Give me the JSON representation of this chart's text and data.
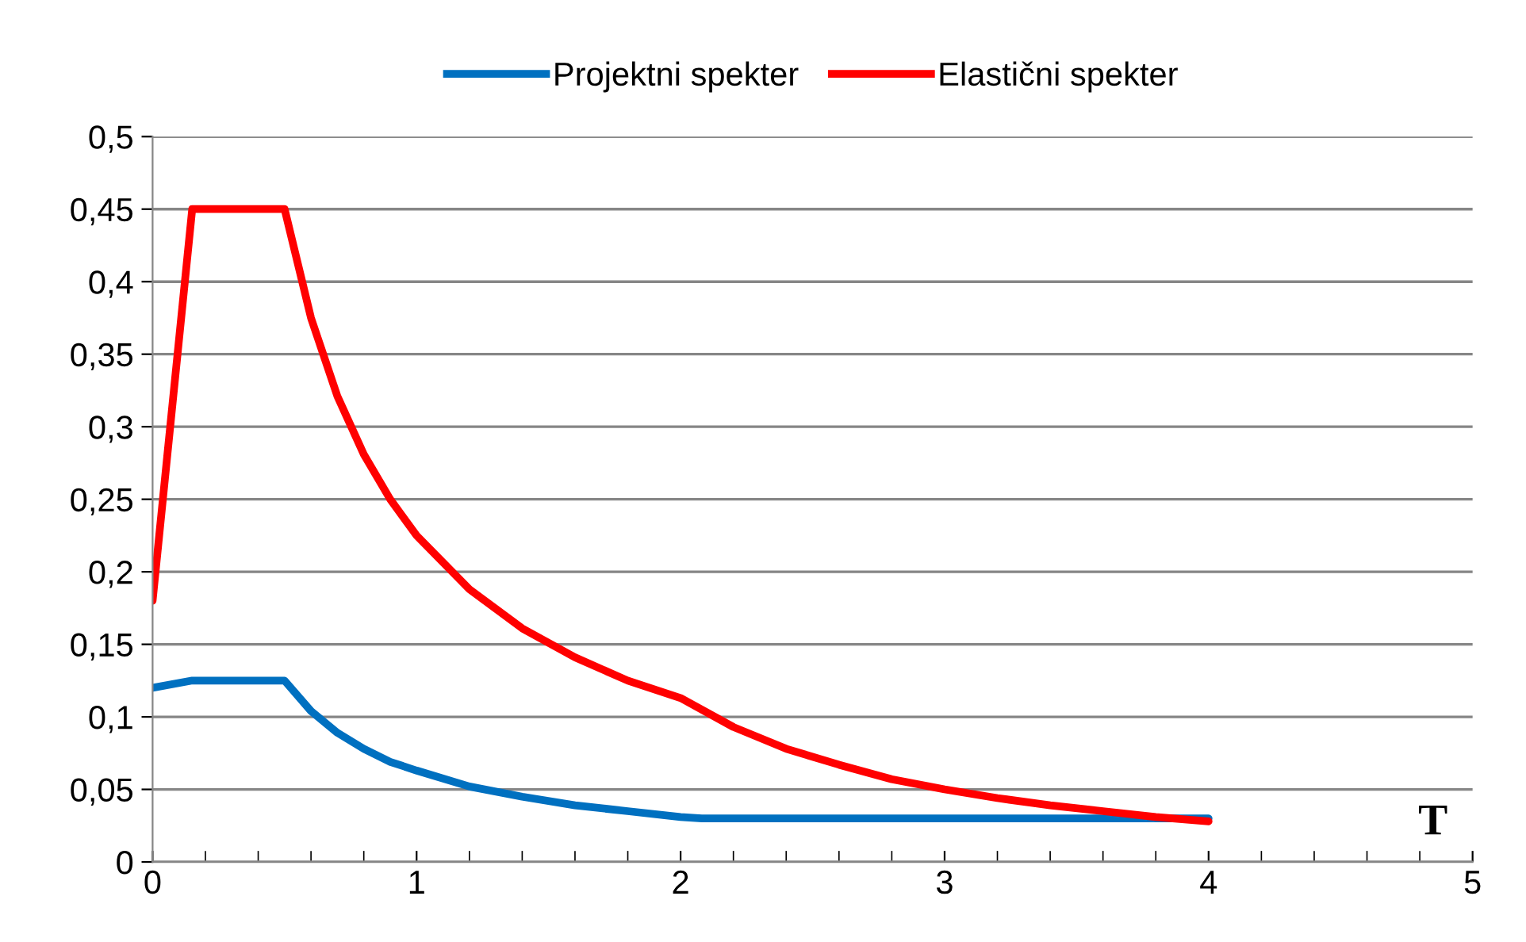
{
  "chart_data": {
    "type": "line",
    "xlabel": "T",
    "legend": "top",
    "grid": "y",
    "marker": "none",
    "line_style": "solid",
    "xlim": [
      0,
      5
    ],
    "ylim": [
      0,
      0.5
    ],
    "xticks": [
      0,
      {
        "value": 0.2,
        "label": null
      },
      {
        "value": 0.4,
        "label": null
      },
      {
        "value": 0.6,
        "label": null
      },
      {
        "value": 0.8,
        "label": null
      },
      1,
      {
        "value": 1.2,
        "label": null
      },
      {
        "value": 1.4,
        "label": null
      },
      {
        "value": 1.6,
        "label": null
      },
      {
        "value": 1.8,
        "label": null
      },
      2,
      {
        "value": 2.2,
        "label": null
      },
      {
        "value": 2.4,
        "label": null
      },
      {
        "value": 2.6,
        "label": null
      },
      {
        "value": 2.8,
        "label": null
      },
      3,
      {
        "value": 3.2,
        "label": null
      },
      {
        "value": 3.4,
        "label": null
      },
      {
        "value": 3.6,
        "label": null
      },
      {
        "value": 3.8,
        "label": null
      },
      4,
      {
        "value": 4.2,
        "label": null
      },
      {
        "value": 4.4,
        "label": null
      },
      {
        "value": 4.6,
        "label": null
      },
      {
        "value": 4.8,
        "label": null
      },
      5
    ],
    "yticks": [
      0,
      {
        "value": 0.05,
        "label": "0,05"
      },
      {
        "value": 0.1,
        "label": "0,1"
      },
      {
        "value": 0.15,
        "label": "0,15"
      },
      {
        "value": 0.2,
        "label": "0,2"
      },
      {
        "value": 0.25,
        "label": "0,25"
      },
      {
        "value": 0.3,
        "label": "0,3"
      },
      {
        "value": 0.35,
        "label": "0,35"
      },
      {
        "value": 0.4,
        "label": "0,4"
      },
      {
        "value": 0.45,
        "label": "0,45"
      },
      {
        "value": 0.5,
        "label": "0,5"
      }
    ],
    "series": [
      {
        "name": "Projektni spekter",
        "color": "#0070c0",
        "x": [
          0,
          0.15,
          0.5,
          0.6,
          0.7,
          0.8,
          0.9,
          1.0,
          1.2,
          1.4,
          1.6,
          1.8,
          2.0,
          2.08,
          4.0
        ],
        "values": [
          0.12,
          0.125,
          0.125,
          0.104,
          0.089,
          0.078,
          0.069,
          0.063,
          0.052,
          0.045,
          0.039,
          0.035,
          0.031,
          0.03,
          0.03
        ]
      },
      {
        "name": "Elastični spekter",
        "color": "#ff0000",
        "x": [
          0,
          0.15,
          0.5,
          0.6,
          0.7,
          0.8,
          0.9,
          1.0,
          1.2,
          1.4,
          1.6,
          1.8,
          2.0,
          2.2,
          2.4,
          2.6,
          2.8,
          3.0,
          3.2,
          3.4,
          3.6,
          3.8,
          4.0
        ],
        "values": [
          0.18,
          0.45,
          0.45,
          0.375,
          0.321,
          0.281,
          0.25,
          0.225,
          0.188,
          0.161,
          0.141,
          0.125,
          0.113,
          0.093,
          0.078,
          0.067,
          0.057,
          0.05,
          0.044,
          0.039,
          0.035,
          0.031,
          0.028
        ]
      }
    ]
  }
}
